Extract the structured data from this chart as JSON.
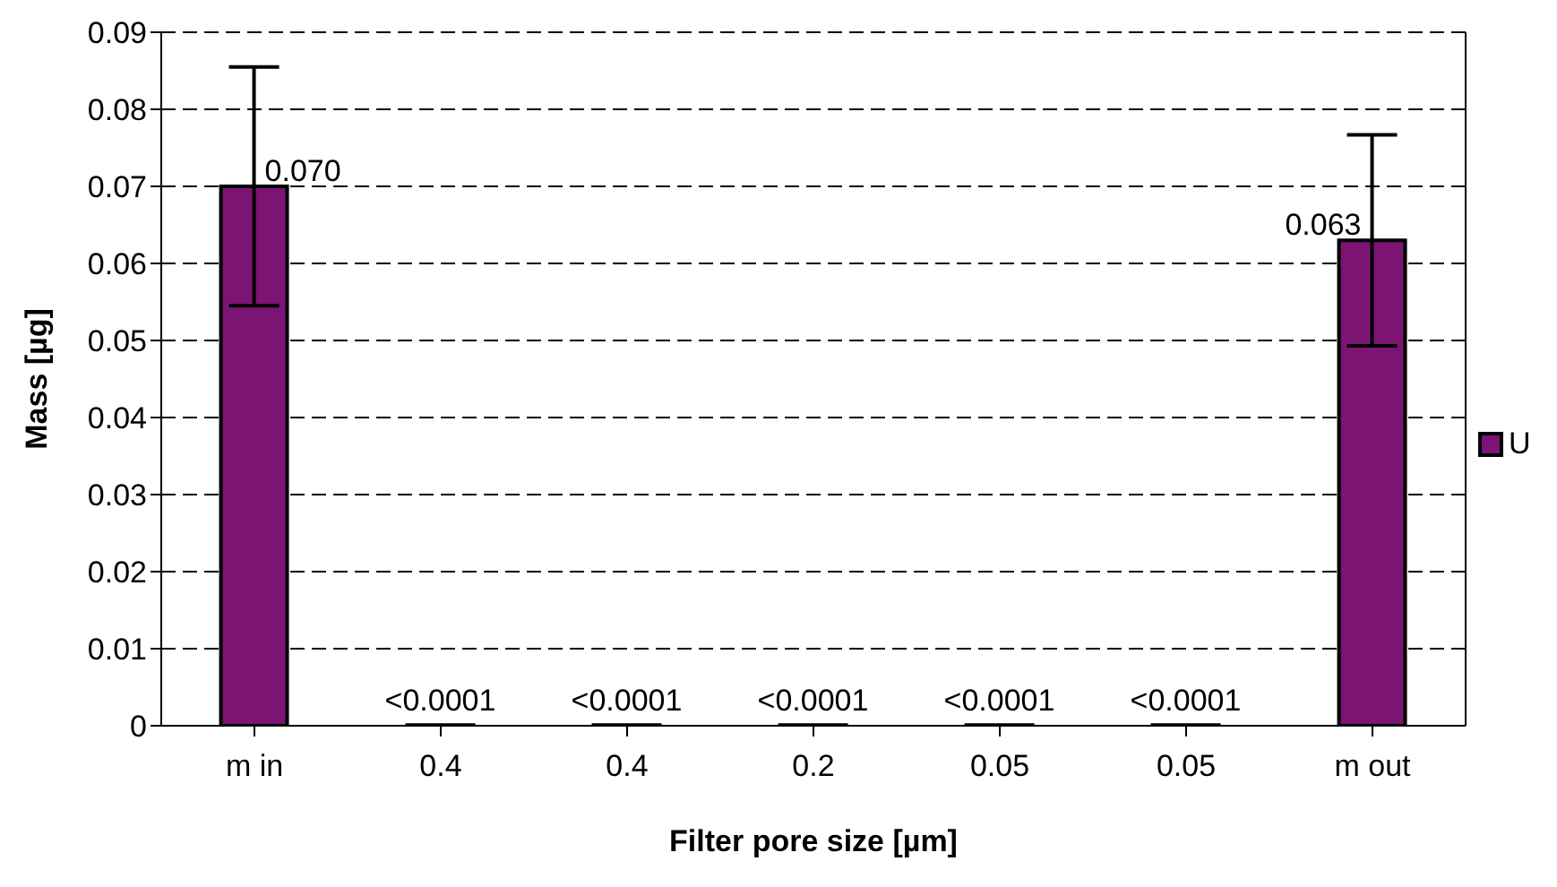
{
  "chart_data": {
    "type": "bar",
    "xlabel": "Filter pore size [µm]",
    "ylabel": "Mass [µg]",
    "categories": [
      "m in",
      "0.4",
      "0.4",
      "0.2",
      "0.05",
      "0.05",
      "m out"
    ],
    "series": [
      {
        "name": "U",
        "color": "#7b1473",
        "values": [
          0.07,
          0.0001,
          0.0001,
          0.0001,
          0.0001,
          0.0001,
          0.063
        ],
        "errors": [
          0.0155,
          null,
          null,
          null,
          null,
          null,
          0.0137
        ],
        "value_labels": [
          "0.070",
          "<0.0001",
          "<0.0001",
          "<0.0001",
          "<0.0001",
          "<0.0001",
          "0.063"
        ]
      }
    ],
    "ylim": [
      0,
      0.09
    ],
    "yticks": [
      0,
      0.01,
      0.02,
      0.03,
      0.04,
      0.05,
      0.06,
      0.07,
      0.08,
      0.09
    ],
    "grid": "y",
    "legend": "right"
  }
}
